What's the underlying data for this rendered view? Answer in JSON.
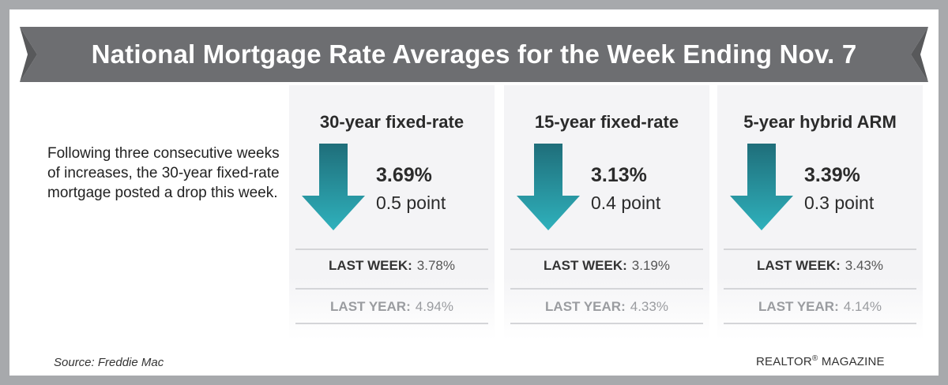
{
  "title": "National Mortgage Rate Averages for the Week Ending Nov. 7",
  "intro": "Following three consecutive weeks of increases, the 30-year fixed-rate mortgage posted a drop this week.",
  "cards": [
    {
      "title": "30-year fixed-rate",
      "rate": "3.69%",
      "change": "0.5 point",
      "direction_icon": "arrow-down-icon",
      "last_week_label": "LAST WEEK:",
      "last_week_value": "3.78%",
      "last_year_label": "LAST YEAR:",
      "last_year_value": "4.94%"
    },
    {
      "title": "15-year fixed-rate",
      "rate": "3.13%",
      "change": "0.4 point",
      "direction_icon": "arrow-down-icon",
      "last_week_label": "LAST WEEK:",
      "last_week_value": "3.19%",
      "last_year_label": "LAST YEAR:",
      "last_year_value": "4.33%"
    },
    {
      "title": "5-year hybrid ARM",
      "rate": "3.39%",
      "change": "0.3 point",
      "direction_icon": "arrow-down-icon",
      "last_week_label": "LAST WEEK:",
      "last_week_value": "3.43%",
      "last_year_label": "LAST YEAR:",
      "last_year_value": "4.14%"
    }
  ],
  "source": "Source: Freddie Mac",
  "brand": {
    "name": "REALTOR",
    "mark": "®",
    "suffix": " MAGAZINE"
  },
  "colors": {
    "frame": "#a7a9ac",
    "banner": "#6d6e71",
    "banner_tail": "#58595b",
    "arrow_top": "#1f6e7a",
    "arrow_bottom": "#2fb1bc",
    "card_bg": "#f4f4f6"
  }
}
